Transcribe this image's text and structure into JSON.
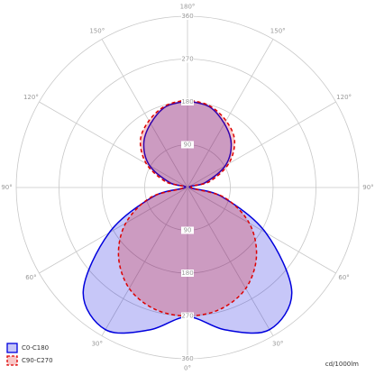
{
  "chart_data": {
    "type": "polar",
    "unit_label": "cd/1000lm",
    "angles": [
      -180,
      -165,
      -150,
      -135,
      -120,
      -105,
      -90,
      -75,
      -60,
      -45,
      -30,
      -15,
      0,
      15,
      30,
      45,
      60,
      75,
      90,
      105,
      120,
      135,
      150,
      165,
      180
    ],
    "series": [
      {
        "name": "C0-C180",
        "color": "#0000dd",
        "dashed": false,
        "values": [
          182,
          176,
          155,
          130,
          92,
          38,
          5,
          75,
          190,
          310,
          345,
          310,
          272,
          310,
          345,
          310,
          190,
          75,
          5,
          38,
          92,
          130,
          155,
          176,
          182
        ]
      },
      {
        "name": "C90-C270",
        "color": "#dd0000",
        "dashed": true,
        "values": [
          185,
          178,
          162,
          140,
          100,
          48,
          8,
          80,
          150,
          205,
          245,
          265,
          270,
          265,
          245,
          205,
          150,
          80,
          8,
          48,
          100,
          140,
          162,
          178,
          185
        ]
      }
    ],
    "rlim": [
      0,
      360
    ],
    "rticks": [
      90,
      180,
      270,
      360
    ],
    "angle_ticks": [
      {
        "value": 0,
        "label": "0°"
      },
      {
        "value": 30,
        "label": "30°"
      },
      {
        "value": 60,
        "label": "60°"
      },
      {
        "value": 90,
        "label": "90°"
      },
      {
        "value": 120,
        "label": "120°"
      },
      {
        "value": 150,
        "label": "150°"
      },
      {
        "value": 180,
        "label": "180°"
      }
    ],
    "grid": true,
    "legend": "bottom-left"
  }
}
